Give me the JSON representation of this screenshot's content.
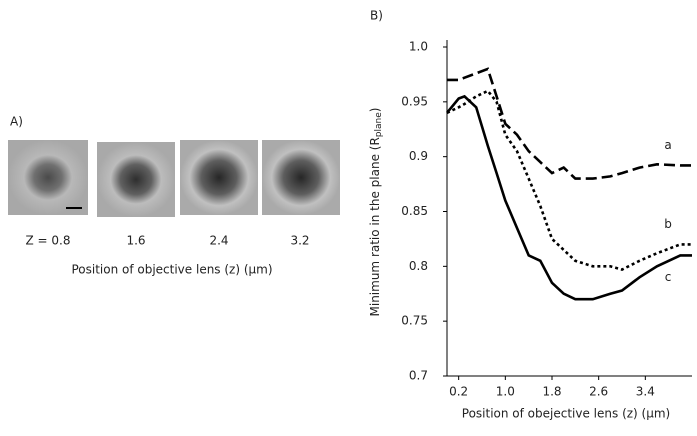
{
  "panel_a": {
    "label": "A)",
    "z_labels": [
      "Z = 0.8",
      "1.6",
      "2.4",
      "3.2"
    ],
    "xlabel": "Position of objective lens (z) (µm)"
  },
  "chart_data": {
    "type": "line",
    "panel_label": "B)",
    "xlabel": "Position of obejective lens (z) (µm)",
    "ylabel": {
      "text": "Minimum  ratio  in  the  plane (R",
      "subscript": "plane",
      "close": ")"
    },
    "x": [
      0,
      0.2,
      0.3,
      0.5,
      0.7,
      0.85,
      1.0,
      1.2,
      1.4,
      1.6,
      1.8,
      2.0,
      2.2,
      2.5,
      2.8,
      3.0,
      3.3,
      3.6,
      4.0,
      4.2
    ],
    "series": [
      {
        "name": "a",
        "color": "#000000",
        "linestyle": "dashed",
        "values": [
          0.97,
          0.97,
          0.972,
          0.976,
          0.98,
          0.955,
          0.93,
          0.92,
          0.905,
          0.895,
          0.885,
          0.89,
          0.88,
          0.88,
          0.882,
          0.885,
          0.89,
          0.893,
          0.892,
          0.892
        ]
      },
      {
        "name": "b",
        "color": "#000000",
        "linestyle": "dotted",
        "values": [
          0.94,
          0.945,
          0.948,
          0.955,
          0.96,
          0.95,
          0.92,
          0.905,
          0.88,
          0.855,
          0.825,
          0.815,
          0.805,
          0.8,
          0.8,
          0.797,
          0.805,
          0.812,
          0.82,
          0.82
        ]
      },
      {
        "name": "c",
        "color": "#000000",
        "linestyle": "solid",
        "values": [
          0.94,
          0.953,
          0.955,
          0.945,
          0.91,
          0.885,
          0.86,
          0.835,
          0.81,
          0.805,
          0.785,
          0.775,
          0.77,
          0.77,
          0.775,
          0.778,
          0.79,
          0.8,
          0.81,
          0.81
        ]
      }
    ],
    "xlim": [
      0,
      4.2
    ],
    "ylim": [
      0.7,
      1.0
    ],
    "xticks": [
      0.2,
      {
        "value": 1,
        "label": "1.0"
      },
      1.8,
      2.6,
      3.4
    ],
    "yticks": [
      0.7,
      0.75,
      0.8,
      0.85,
      0.9,
      0.95,
      {
        "value": 1,
        "label": "1.0"
      }
    ],
    "grid": false
  }
}
